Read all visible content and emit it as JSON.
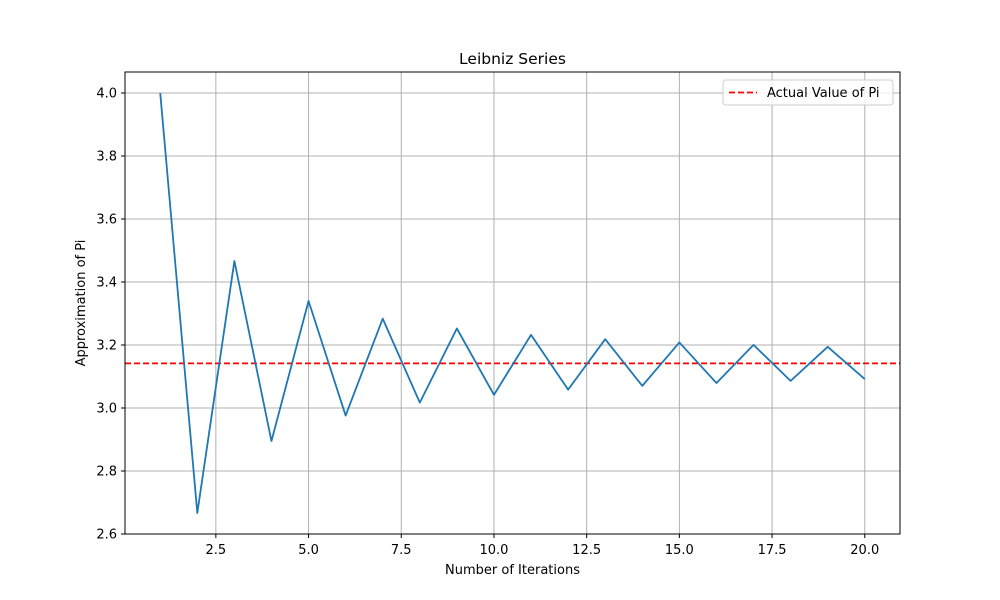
{
  "chart_data": {
    "type": "line",
    "title": "Leibniz Series",
    "xlabel": "Number of Iterations",
    "ylabel": "Approximation of Pi",
    "xlim": [
      0.05,
      20.95
    ],
    "ylim": [
      2.6,
      4.0667
    ],
    "x_ticks": [
      2.5,
      5.0,
      7.5,
      10.0,
      12.5,
      15.0,
      17.5,
      20.0
    ],
    "x_tick_labels": [
      "2.5",
      "5.0",
      "7.5",
      "10.0",
      "12.5",
      "15.0",
      "17.5",
      "20.0"
    ],
    "y_ticks": [
      2.6,
      2.8,
      3.0,
      3.2,
      3.4,
      3.6,
      3.8,
      4.0
    ],
    "y_tick_labels": [
      "2.6",
      "2.8",
      "3.0",
      "3.2",
      "3.4",
      "3.6",
      "3.8",
      "4.0"
    ],
    "grid": true,
    "legend_position": "top-right",
    "series": [
      {
        "name": "",
        "color": "#1f77b4",
        "style": "solid",
        "x": [
          1,
          2,
          3,
          4,
          5,
          6,
          7,
          8,
          9,
          10,
          11,
          12,
          13,
          14,
          15,
          16,
          17,
          18,
          19,
          20
        ],
        "y": [
          4.0,
          2.6667,
          3.4667,
          2.8952,
          3.3397,
          2.976,
          3.2837,
          3.0171,
          3.2524,
          3.0418,
          3.2323,
          3.0584,
          3.2184,
          3.0703,
          3.2082,
          3.0792,
          3.2004,
          3.0861,
          3.1942,
          3.0918
        ]
      }
    ],
    "reference_lines": [
      {
        "name": "Actual Value of Pi",
        "orientation": "horizontal",
        "y": 3.14159,
        "color": "#ff0000",
        "style": "dashed"
      }
    ]
  }
}
